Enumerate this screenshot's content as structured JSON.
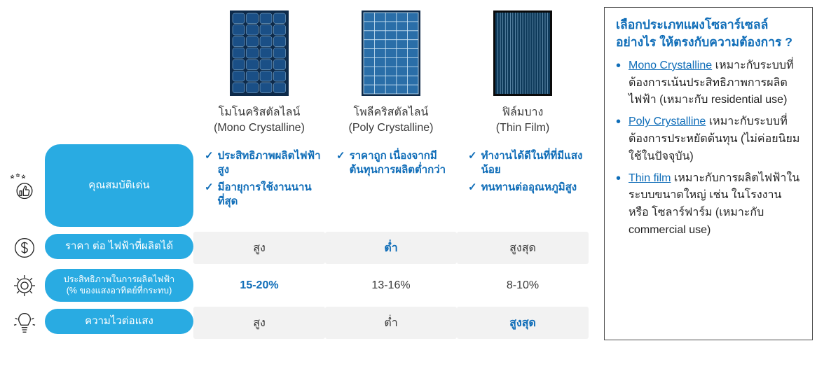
{
  "colors": {
    "accent_blue": "#29abe2",
    "text_blue": "#0f6db8",
    "text_dark": "#3a3a3a",
    "stripe_bg": "#f2f2f2",
    "border_gray": "#4a4a4a",
    "panel_frame": "#0d2a4a",
    "panel_mono": "#1a4f86",
    "panel_poly": "#2a6ea8",
    "panel_thin": "#0e3a5a",
    "white": "#ffffff"
  },
  "columns": [
    {
      "key": "mono",
      "name_th": "โมโนคริสตัลไลน์",
      "name_en": "(Mono Crystalline)",
      "panel_type": "mono"
    },
    {
      "key": "poly",
      "name_th": "โพลีคริสตัลไลน์",
      "name_en": "(Poly Crystalline)",
      "panel_type": "poly"
    },
    {
      "key": "thin",
      "name_th": "ฟิล์มบาง",
      "name_en": "(Thin Film)",
      "panel_type": "thin"
    }
  ],
  "rows": {
    "features": {
      "label": "คุณสมบัติเด่น",
      "icon": "thumbs-up-stars",
      "cells": {
        "mono": [
          "ประสิทธิภาพผลิตไฟฟ้าสูง",
          "มีอายุการใช้งานนานที่สุด"
        ],
        "poly": [
          "ราคาถูก เนื่องจากมีต้นทุนการผลิตต่ำกว่า"
        ],
        "thin": [
          "ทำงานได้ดีในที่ที่มีแสงน้อย",
          "ทนทานต่ออุณหภูมิสูง"
        ]
      }
    },
    "price": {
      "label": "ราคา ต่อ ไฟฟ้าที่ผลิตได้",
      "icon": "dollar",
      "cells": {
        "mono": "สูง",
        "poly": "ต่ำ",
        "thin": "สูงสุด"
      },
      "highlight_key": "poly"
    },
    "efficiency": {
      "label": "ประสิทธิภาพในการผลิตไฟฟ้า\n(% ของแสงอาทิตย์ที่กระทบ)",
      "icon": "gear",
      "cells": {
        "mono": "15-20%",
        "poly": "13-16%",
        "thin": "8-10%"
      },
      "highlight_key": "mono"
    },
    "sensitivity": {
      "label": "ความไวต่อแสง",
      "icon": "bulb",
      "cells": {
        "mono": "สูง",
        "poly": "ต่ำ",
        "thin": "สูงสุด"
      },
      "highlight_key": "thin"
    }
  },
  "sidebar": {
    "title": "เลือกประเภทแผงโซลาร์เซลล์อย่างไร ให้ตรงกับความต้องการ ?",
    "items": [
      {
        "link": "Mono Crystalline",
        "text": " เหมาะกับระบบที่ต้องการเน้นประสิทธิภาพการผลิตไฟฟ้า (เหมาะกับ residential use)"
      },
      {
        "link": "Poly Crystalline",
        "text": " เหมาะกับระบบที่ต้องการประหยัดต้นทุน (ไม่ค่อยนิยมใช้ในปัจจุบัน)"
      },
      {
        "link": "Thin film",
        "text": " เหมาะกับการผลิตไฟฟ้าในระบบขนาดใหญ่ เช่น ในโรงงาน หรือ โซลาร์ฟาร์ม (เหมาะกับ commercial use)"
      }
    ]
  }
}
